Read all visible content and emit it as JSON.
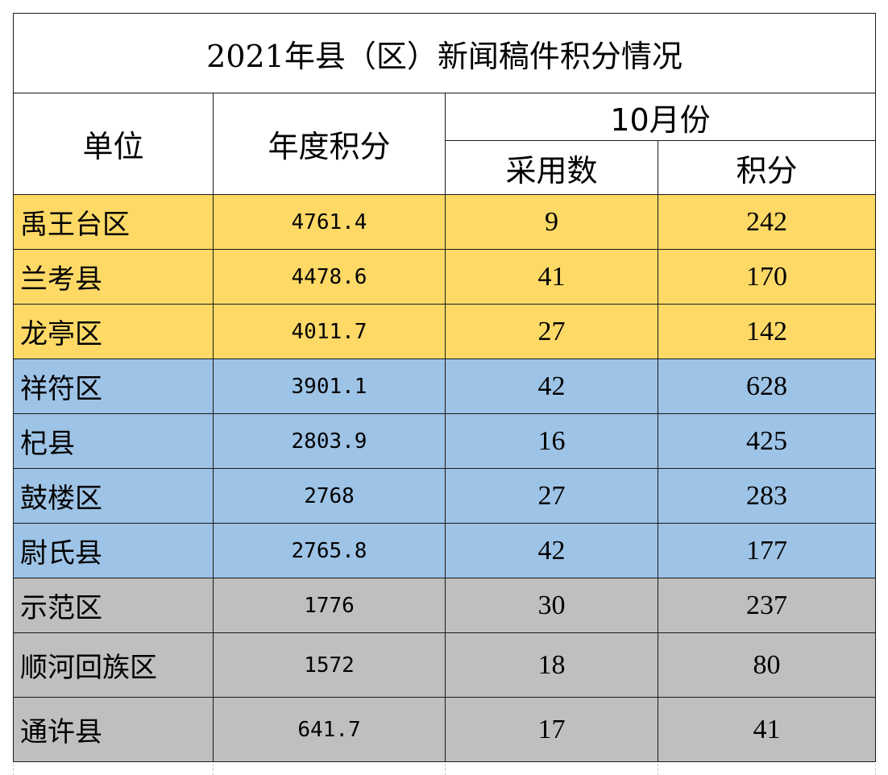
{
  "title": "2021年县（区）新闻稿件积分情况",
  "headers": {
    "unit": "单位",
    "annual": "年度积分",
    "month_group": "10月份",
    "adopted": "采用数",
    "points": "积分"
  },
  "tier_colors": {
    "tier_1": "#FFD966",
    "tier_2": "#9DC3E6",
    "tier_3": "#BFBFBF"
  },
  "rows": [
    {
      "unit": "禹王台区",
      "annual": "4761.4",
      "adopted": "9",
      "points": "242",
      "tier": 1
    },
    {
      "unit": "兰考县",
      "annual": "4478.6",
      "adopted": "41",
      "points": "170",
      "tier": 1
    },
    {
      "unit": "龙亭区",
      "annual": "4011.7",
      "adopted": "27",
      "points": "142",
      "tier": 1
    },
    {
      "unit": "祥符区",
      "annual": "3901.1",
      "adopted": "42",
      "points": "628",
      "tier": 2
    },
    {
      "unit": "杞县",
      "annual": "2803.9",
      "adopted": "16",
      "points": "425",
      "tier": 2
    },
    {
      "unit": "鼓楼区",
      "annual": "2768",
      "adopted": "27",
      "points": "283",
      "tier": 2
    },
    {
      "unit": "尉氏县",
      "annual": "2765.8",
      "adopted": "42",
      "points": "177",
      "tier": 2
    },
    {
      "unit": "示范区",
      "annual": "1776",
      "adopted": "30",
      "points": "237",
      "tier": 3
    },
    {
      "unit": "顺河回族区",
      "annual": "1572",
      "adopted": "18",
      "points": "80",
      "tier": 3
    },
    {
      "unit": "通许县",
      "annual": "641.7",
      "adopted": "17",
      "points": "41",
      "tier": 3
    }
  ]
}
